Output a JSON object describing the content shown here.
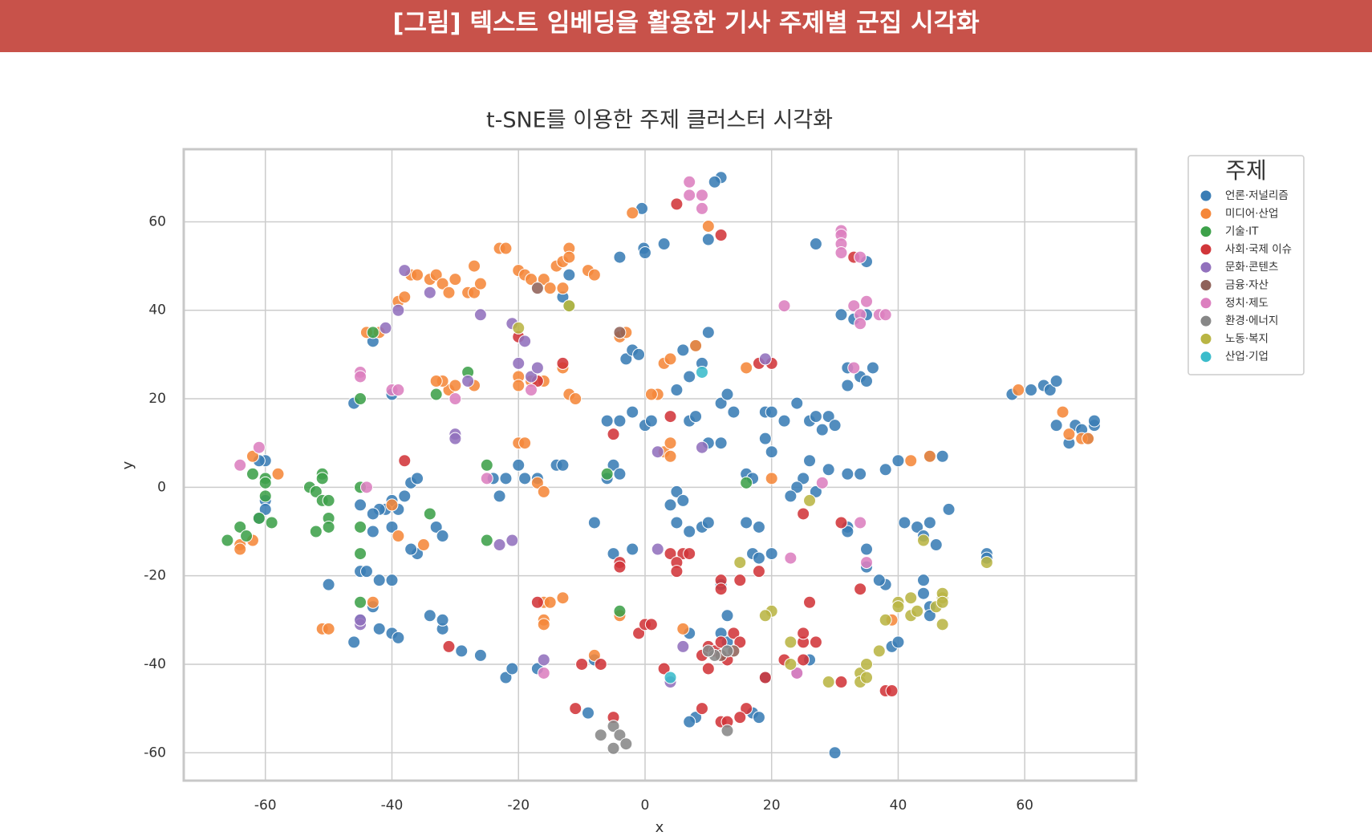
{
  "header": {
    "title": "[그림] 텍스트 임베딩을 활용한 기사 주제별 군집 시각화"
  },
  "chart_data": {
    "type": "scatter",
    "title": "t-SNE를 이용한 주제 클러스터 시각화",
    "x_label": "x",
    "y_label": "y",
    "xlim": [
      -72.9,
      77.6
    ],
    "ylim": [
      -66.3,
      76.4
    ],
    "xticks": [
      -60,
      -40,
      -20,
      0,
      20,
      40,
      60
    ],
    "yticks": [
      -60,
      -40,
      -20,
      0,
      20,
      40,
      60
    ],
    "grid": true,
    "legend_title": "주제",
    "legend_position": "outside-right",
    "series": [
      {
        "name": "언론·저널리즘",
        "color": "#3a7db5",
        "x": [
          -0.5,
          -0.2,
          0,
          3,
          12,
          11,
          10,
          27,
          35,
          31,
          35,
          33,
          32,
          32,
          34,
          35,
          36,
          -4,
          -3,
          -2,
          -1,
          6,
          8,
          10,
          9,
          7,
          5,
          -4,
          -2,
          0,
          1,
          -6,
          7,
          8,
          12,
          13,
          14,
          12,
          10,
          19,
          20,
          22,
          24,
          26,
          27,
          28,
          29,
          30,
          19,
          20,
          26,
          29,
          32,
          34,
          38,
          40,
          45,
          47,
          25,
          24,
          23,
          27,
          16,
          17,
          -5,
          -4,
          -6,
          -20,
          -19,
          -22,
          -24,
          -23,
          -17,
          -14,
          -13,
          -37,
          -36,
          -40,
          -38,
          -39,
          -41,
          -42,
          -43,
          -40,
          -43,
          -45,
          -60,
          -61,
          -60,
          -60,
          -61,
          -50,
          -45,
          -44,
          -42,
          -40,
          -43,
          -42,
          -40,
          -39,
          -46,
          -45,
          -34,
          -32,
          -32,
          -29,
          -26,
          -22,
          -21,
          -17,
          -8,
          -8,
          -5,
          -2,
          4,
          5,
          6,
          5,
          7,
          9,
          10,
          16,
          18,
          17,
          18,
          20,
          12,
          13,
          12,
          13,
          7,
          8,
          7,
          17,
          18,
          19,
          26,
          30,
          32,
          32,
          35,
          35,
          38,
          37,
          39,
          40,
          41,
          43,
          45,
          44,
          46,
          48,
          44,
          44,
          45,
          45,
          54,
          54,
          58,
          61,
          63,
          64,
          65,
          65,
          67,
          68,
          69,
          70,
          71,
          71,
          -46,
          -40,
          -43,
          -12,
          -13,
          -36,
          -37,
          -33,
          -32,
          -9
        ],
        "y": [
          63,
          54,
          53,
          55,
          70,
          69,
          56,
          55,
          51,
          39,
          39,
          38,
          27,
          23,
          25,
          24,
          27,
          52,
          29,
          31,
          30,
          31,
          32,
          35,
          28,
          25,
          22,
          15,
          17,
          14,
          15,
          15,
          15,
          16,
          19,
          21,
          17,
          10,
          10,
          17,
          17,
          15,
          19,
          15,
          16,
          13,
          16,
          14,
          11,
          8,
          6,
          4,
          3,
          3,
          4,
          6,
          7,
          7,
          2,
          0,
          -2,
          -1,
          3,
          2,
          5,
          3,
          2,
          5,
          2,
          2,
          2,
          -2,
          2,
          5,
          5,
          1,
          2,
          -3,
          -2,
          -5,
          -5,
          -5,
          -6,
          -9,
          -10,
          -4,
          6,
          6,
          -3,
          -5,
          -7,
          -22,
          -19,
          -19,
          -21,
          -21,
          -27,
          -32,
          -33,
          -34,
          -35,
          -30,
          -29,
          -32,
          -30,
          -37,
          -38,
          -43,
          -41,
          -41,
          -39,
          -8,
          -15,
          -14,
          -4,
          -1,
          -3,
          -8,
          -10,
          -9,
          -8,
          -8,
          -9,
          -15,
          -16,
          -15,
          -22,
          -29,
          -33,
          -35,
          -33,
          -52,
          -53,
          -51,
          -52,
          -43,
          -39,
          -60,
          -9,
          -10,
          -14,
          -18,
          -22,
          -21,
          -36,
          -35,
          -8,
          -9,
          -8,
          -11,
          -13,
          -5,
          -21,
          -24,
          -27,
          -29,
          -15,
          -16,
          21,
          22,
          23,
          22,
          24,
          14,
          10,
          14,
          13,
          11,
          14,
          15,
          19,
          21,
          33,
          48,
          43,
          -15,
          -14,
          -9,
          -11,
          -51
        ]
      },
      {
        "name": "미디어·산업",
        "color": "#f5873a",
        "x": [
          -2,
          10,
          -44,
          -42,
          -39,
          -38,
          -37,
          -36,
          -34,
          -33,
          -32,
          -31,
          -30,
          -28,
          -27,
          -26,
          -27,
          -23,
          -22,
          -20,
          -19,
          -18,
          -16,
          -14,
          -13,
          -12,
          -12,
          -13,
          -15,
          -9,
          -8,
          -4,
          -3,
          3,
          4,
          8,
          2,
          1,
          -20,
          -20,
          -18,
          -16,
          -13,
          -12,
          -11,
          -27,
          -31,
          -30,
          -32,
          -33,
          -20,
          -19,
          -17,
          -16,
          -40,
          -39,
          -35,
          -62,
          -58,
          -62,
          -64,
          -64,
          -51,
          -50,
          -43,
          -16,
          -16,
          -16,
          -15,
          -13,
          -8,
          -4,
          6,
          3,
          4,
          4,
          16,
          20,
          42,
          45,
          39,
          59,
          66,
          67,
          69,
          70
        ],
        "y": [
          62,
          59,
          35,
          35,
          42,
          43,
          48,
          48,
          47,
          48,
          46,
          44,
          47,
          44,
          44,
          46,
          50,
          54,
          54,
          49,
          48,
          47,
          47,
          50,
          51,
          54,
          52,
          45,
          45,
          49,
          48,
          34,
          35,
          28,
          29,
          32,
          21,
          21,
          25,
          23,
          24,
          24,
          27,
          21,
          20,
          23,
          22,
          23,
          24,
          24,
          10,
          10,
          1,
          -1,
          -4,
          -11,
          -13,
          7,
          3,
          -12,
          -13,
          -14,
          -32,
          -32,
          -26,
          -30,
          -31,
          -26,
          -26,
          -25,
          -38,
          -29,
          -32,
          8,
          7,
          10,
          27,
          2,
          6,
          7,
          -30,
          22,
          17,
          12,
          11,
          11
        ]
      },
      {
        "name": "기술·IT",
        "color": "#3da14a",
        "x": [
          -66,
          -64,
          -63,
          -62,
          -60,
          -60,
          -60,
          -59,
          -61,
          -53,
          -52,
          -51,
          -51,
          -51,
          -50,
          -50,
          -50,
          -52,
          -45,
          -45,
          -45,
          -45,
          -43,
          -45,
          -34,
          -33,
          -28,
          -25,
          -25,
          -6,
          -4,
          16,
          -12
        ],
        "y": [
          -12,
          -9,
          -11,
          3,
          2,
          1,
          -2,
          -8,
          -7,
          0,
          -1,
          3,
          2,
          -3,
          -3,
          -7,
          -9,
          -10,
          0,
          -9,
          -15,
          -26,
          35,
          20,
          -6,
          21,
          26,
          5,
          -12,
          3,
          -28,
          1,
          41
        ]
      },
      {
        "name": "사회·국제 이슈",
        "color": "#d1363a",
        "x": [
          5,
          12,
          33,
          -38,
          -20,
          -17,
          -13,
          -5,
          4,
          18,
          20,
          25,
          31,
          34,
          -4,
          -4,
          -17,
          -1,
          0,
          1,
          4,
          6,
          7,
          5,
          5,
          9,
          10,
          11,
          12,
          14,
          15,
          13,
          10,
          3,
          -7,
          -10,
          -11,
          -5,
          9,
          12,
          13,
          16,
          15,
          12,
          12,
          15,
          18,
          19,
          22,
          25,
          25,
          25,
          27,
          26,
          31,
          38,
          39,
          -31
        ],
        "y": [
          64,
          57,
          52,
          6,
          34,
          24,
          28,
          12,
          16,
          28,
          28,
          -6,
          -8,
          -23,
          -17,
          -18,
          -26,
          -33,
          -31,
          -31,
          -15,
          -15,
          -15,
          -17,
          -19,
          -38,
          -36,
          -37,
          -35,
          -33,
          -35,
          -39,
          -41,
          -41,
          -40,
          -40,
          -50,
          -52,
          -50,
          -53,
          -53,
          -50,
          -52,
          -21,
          -23,
          -21,
          -19,
          -43,
          -39,
          -39,
          -35,
          -33,
          -35,
          -26,
          -44,
          -46,
          -46,
          -36
        ]
      },
      {
        "name": "문화·콘텐츠",
        "color": "#9271bd",
        "x": [
          -38,
          -39,
          -41,
          -34,
          -30,
          -30,
          -26,
          -21,
          -20,
          -19,
          -18,
          -17,
          -28,
          -23,
          -21,
          -16,
          -45,
          -45,
          2,
          9,
          19,
          4,
          2,
          6,
          24
        ],
        "y": [
          49,
          40,
          36,
          44,
          12,
          11,
          39,
          37,
          28,
          33,
          25,
          27,
          24,
          -13,
          -12,
          -39,
          -31,
          -30,
          8,
          9,
          29,
          -44,
          -14,
          -36,
          -42
        ]
      },
      {
        "name": "금융·자산",
        "color": "#8f6259",
        "x": [
          -17,
          -4,
          12,
          14
        ],
        "y": [
          45,
          35,
          -38,
          -37
        ]
      },
      {
        "name": "정치·제도",
        "color": "#dc7fbf",
        "x": [
          7,
          7,
          9,
          9,
          31,
          31,
          31,
          31,
          34,
          33,
          34,
          34,
          35,
          37,
          38,
          22,
          33,
          -45,
          -45,
          -40,
          -39,
          -30,
          -18,
          -61,
          -64,
          -44,
          -25,
          -16,
          28,
          34,
          35,
          23,
          24
        ],
        "y": [
          69,
          66,
          66,
          63,
          58,
          57,
          55,
          53,
          52,
          41,
          39,
          37,
          42,
          39,
          39,
          41,
          27,
          26,
          25,
          22,
          22,
          20,
          22,
          9,
          5,
          0,
          2,
          -42,
          1,
          -8,
          -17,
          -16,
          -42
        ]
      },
      {
        "name": "환경·에너지",
        "color": "#878787",
        "x": [
          -7,
          -5,
          -4,
          -3,
          -5,
          11,
          13,
          13,
          10
        ],
        "y": [
          -56,
          -54,
          -56,
          -58,
          -59,
          -38,
          -37,
          -55,
          -37
        ]
      },
      {
        "name": "노동·복지",
        "color": "#b9b544",
        "x": [
          -20,
          -12,
          26,
          20,
          19,
          15,
          23,
          23,
          29,
          34,
          34,
          35,
          35,
          37,
          38,
          40,
          40,
          42,
          42,
          43,
          44,
          46,
          47,
          47,
          47,
          47,
          54
        ],
        "y": [
          36,
          41,
          -3,
          -28,
          -29,
          -17,
          -35,
          -40,
          -44,
          -42,
          -44,
          -43,
          -40,
          -37,
          -30,
          -26,
          -27,
          -25,
          -29,
          -28,
          -12,
          -27,
          -25,
          -24,
          -26,
          -31,
          -17
        ]
      },
      {
        "name": "산업·기업",
        "color": "#3bbccb",
        "x": [
          9,
          4
        ],
        "y": [
          26,
          -43
        ]
      }
    ]
  }
}
